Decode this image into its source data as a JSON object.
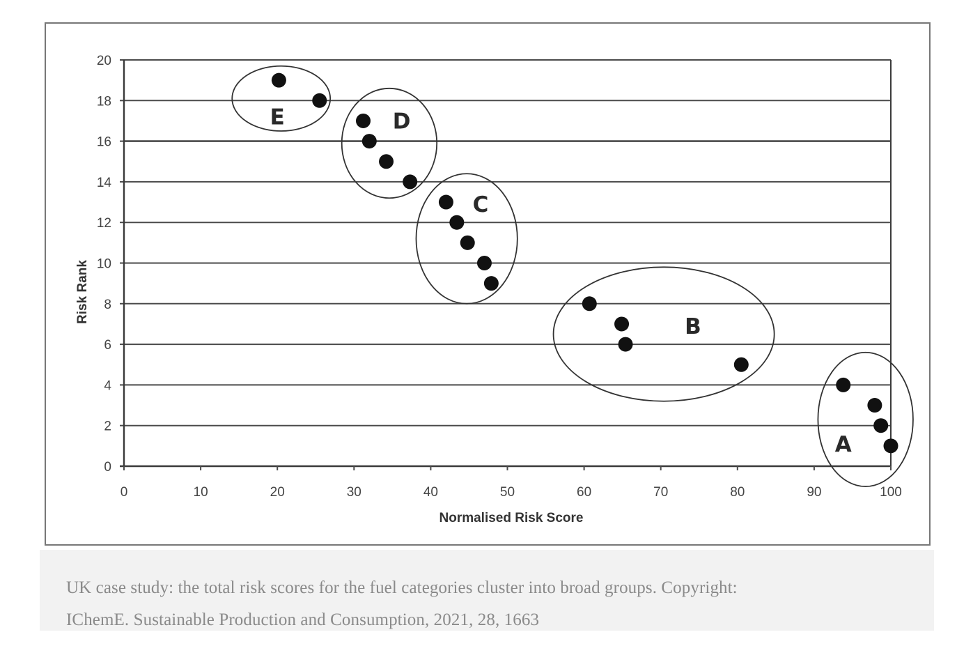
{
  "chart_data": {
    "type": "scatter",
    "title": "",
    "xlabel": "Normalised Risk Score",
    "ylabel": "Risk Rank",
    "xlim": [
      0,
      100
    ],
    "ylim": [
      0,
      20
    ],
    "xticks": [
      0,
      10,
      20,
      30,
      40,
      50,
      60,
      70,
      80,
      90,
      100
    ],
    "yticks": [
      0,
      2,
      4,
      6,
      8,
      10,
      12,
      14,
      16,
      18,
      20
    ],
    "grid": "horizontal",
    "legend": "none",
    "marker_color": "#111111",
    "series": [
      {
        "name": "Fuel categories",
        "points": [
          {
            "x": 20.2,
            "y": 19,
            "cluster": "E"
          },
          {
            "x": 25.5,
            "y": 18,
            "cluster": "E"
          },
          {
            "x": 31.2,
            "y": 17,
            "cluster": "D"
          },
          {
            "x": 32.0,
            "y": 16,
            "cluster": "D"
          },
          {
            "x": 34.2,
            "y": 15,
            "cluster": "D"
          },
          {
            "x": 37.3,
            "y": 14,
            "cluster": "D"
          },
          {
            "x": 42.0,
            "y": 13,
            "cluster": "C"
          },
          {
            "x": 43.4,
            "y": 12,
            "cluster": "C"
          },
          {
            "x": 44.8,
            "y": 11,
            "cluster": "C"
          },
          {
            "x": 47.0,
            "y": 10,
            "cluster": "C"
          },
          {
            "x": 47.9,
            "y": 9,
            "cluster": "C"
          },
          {
            "x": 60.7,
            "y": 8,
            "cluster": "B"
          },
          {
            "x": 64.9,
            "y": 7,
            "cluster": "B"
          },
          {
            "x": 65.4,
            "y": 6,
            "cluster": "B"
          },
          {
            "x": 80.5,
            "y": 5,
            "cluster": "B"
          },
          {
            "x": 93.8,
            "y": 4,
            "cluster": "A"
          },
          {
            "x": 97.9,
            "y": 3,
            "cluster": "A"
          },
          {
            "x": 98.7,
            "y": 2,
            "cluster": "A"
          },
          {
            "x": 100.0,
            "y": 1,
            "cluster": "A"
          }
        ]
      }
    ],
    "clusters": [
      {
        "label": "E",
        "center": {
          "x": 20.5,
          "y": 18.1
        },
        "radius": {
          "x": 6.4,
          "y": 1.6
        },
        "label_at": {
          "x": 20,
          "y": 17.2
        }
      },
      {
        "label": "D",
        "center": {
          "x": 34.6,
          "y": 15.9
        },
        "radius": {
          "x": 6.2,
          "y": 2.7
        },
        "label_at": {
          "x": 36.2,
          "y": 17
        }
      },
      {
        "label": "C",
        "center": {
          "x": 44.7,
          "y": 11.2
        },
        "radius": {
          "x": 6.6,
          "y": 3.2
        },
        "label_at": {
          "x": 46.5,
          "y": 12.9
        }
      },
      {
        "label": "B",
        "center": {
          "x": 70.4,
          "y": 6.5
        },
        "radius": {
          "x": 14.4,
          "y": 3.3
        },
        "label_at": {
          "x": 74.2,
          "y": 6.9
        }
      },
      {
        "label": "A",
        "center": {
          "x": 96.7,
          "y": 2.3
        },
        "radius": {
          "x": 6.2,
          "y": 3.3
        },
        "label_at": {
          "x": 93.8,
          "y": 1.1
        }
      }
    ],
    "annotations": [
      "A",
      "B",
      "C",
      "D",
      "E"
    ]
  },
  "caption": {
    "line1": "UK case study: the total risk scores for the fuel categories cluster into broad groups. Copyright:",
    "line2": "IChemE. Sustainable Production and Consumption, 2021, 28, 1663"
  }
}
